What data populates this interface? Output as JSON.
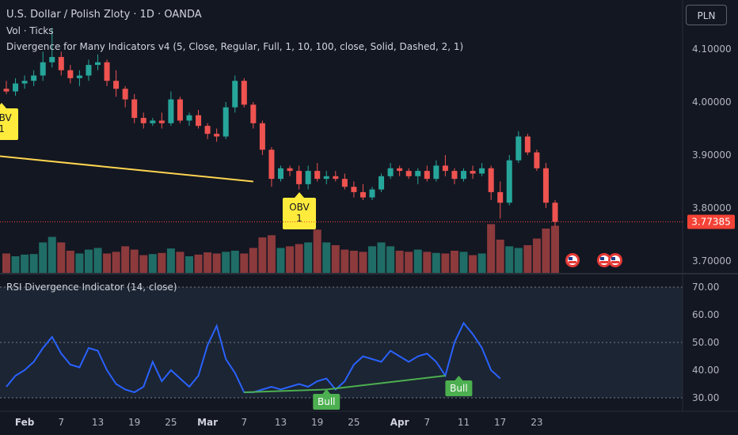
{
  "legend": {
    "symbol_line": "U.S. Dollar / Polish Zloty · 1D · OANDA",
    "volume_line": "Vol · Ticks",
    "divergence_line": "Divergence for Many Indicators v4 (5, Close, Regular, Full, 1, 10, 100, close, Solid, Dashed, 2, 1)",
    "rsi_line": "RSI Divergence Indicator (14, close)"
  },
  "currency_button": "PLN",
  "price_axis": {
    "ticks": [
      "4.10000",
      "4.00000",
      "3.90000",
      "3.80000",
      "3.70000"
    ],
    "tick_values": [
      4.1,
      4.0,
      3.9,
      3.8,
      3.7
    ],
    "last_price": "3.77385",
    "last_price_value": 3.77385
  },
  "rsi_axis": {
    "ticks": [
      "70.00",
      "60.00",
      "50.00",
      "40.00",
      "30.00"
    ],
    "tick_values": [
      70,
      60,
      50,
      40,
      30
    ]
  },
  "time_axis": {
    "labels": [
      {
        "text": "Feb",
        "bar": 2,
        "bold": true
      },
      {
        "text": "7",
        "bar": 6,
        "bold": false
      },
      {
        "text": "13",
        "bar": 10,
        "bold": false
      },
      {
        "text": "19",
        "bar": 14,
        "bold": false
      },
      {
        "text": "25",
        "bar": 18,
        "bold": false
      },
      {
        "text": "Mar",
        "bar": 22,
        "bold": true
      },
      {
        "text": "7",
        "bar": 26,
        "bold": false
      },
      {
        "text": "13",
        "bar": 30,
        "bold": false
      },
      {
        "text": "19",
        "bar": 34,
        "bold": false
      },
      {
        "text": "25",
        "bar": 38,
        "bold": false
      },
      {
        "text": "Apr",
        "bar": 43,
        "bold": true
      },
      {
        "text": "7",
        "bar": 46,
        "bold": false
      },
      {
        "text": "11",
        "bar": 50,
        "bold": false
      },
      {
        "text": "17",
        "bar": 54,
        "bold": false
      },
      {
        "text": "23",
        "bar": 58,
        "bold": false
      }
    ]
  },
  "colors": {
    "background": "#131722",
    "up": "#26a69a",
    "down": "#ef5350",
    "up_volume": "#1f6d66",
    "down_volume": "#8c3a3c",
    "rsi_line": "#2962ff",
    "rsi_band": "#1c2533",
    "divergence_line": "#ffd54f",
    "label_yellow": "#ffeb3b",
    "bull_green": "#4caf50",
    "last_price": "#f44336"
  },
  "chart_data": {
    "type": "candlestick",
    "ohlc": [
      [
        4.025,
        4.04,
        4.015,
        4.02
      ],
      [
        4.02,
        4.045,
        4.012,
        4.035
      ],
      [
        4.035,
        4.05,
        4.025,
        4.04
      ],
      [
        4.04,
        4.06,
        4.03,
        4.05
      ],
      [
        4.05,
        4.095,
        4.04,
        4.075
      ],
      [
        4.075,
        4.14,
        4.065,
        4.085
      ],
      [
        4.085,
        4.095,
        4.05,
        4.06
      ],
      [
        4.06,
        4.07,
        4.035,
        4.045
      ],
      [
        4.045,
        4.06,
        4.03,
        4.05
      ],
      [
        4.05,
        4.08,
        4.04,
        4.07
      ],
      [
        4.07,
        4.09,
        4.06,
        4.075
      ],
      [
        4.075,
        4.08,
        4.03,
        4.04
      ],
      [
        4.04,
        4.06,
        4.01,
        4.025
      ],
      [
        4.025,
        4.03,
        3.99,
        4.005
      ],
      [
        4.005,
        4.015,
        3.96,
        3.97
      ],
      [
        3.97,
        3.98,
        3.95,
        3.96
      ],
      [
        3.96,
        3.97,
        3.955,
        3.965
      ],
      [
        3.965,
        3.98,
        3.95,
        3.96
      ],
      [
        3.96,
        4.02,
        3.955,
        4.005
      ],
      [
        4.005,
        4.01,
        3.96,
        3.965
      ],
      [
        3.965,
        3.98,
        3.955,
        3.975
      ],
      [
        3.975,
        3.985,
        3.95,
        3.955
      ],
      [
        3.955,
        3.96,
        3.93,
        3.94
      ],
      [
        3.94,
        3.95,
        3.925,
        3.935
      ],
      [
        3.935,
        4.0,
        3.93,
        3.99
      ],
      [
        3.99,
        4.05,
        3.98,
        4.04
      ],
      [
        4.04,
        4.045,
        3.99,
        3.995
      ],
      [
        3.995,
        4.0,
        3.95,
        3.96
      ],
      [
        3.96,
        3.965,
        3.9,
        3.91
      ],
      [
        3.91,
        3.915,
        3.84,
        3.855
      ],
      [
        3.855,
        3.88,
        3.85,
        3.875
      ],
      [
        3.875,
        3.88,
        3.86,
        3.87
      ],
      [
        3.87,
        3.88,
        3.835,
        3.845
      ],
      [
        3.845,
        3.88,
        3.835,
        3.87
      ],
      [
        3.87,
        3.885,
        3.85,
        3.855
      ],
      [
        3.855,
        3.87,
        3.845,
        3.86
      ],
      [
        3.86,
        3.87,
        3.85,
        3.855
      ],
      [
        3.855,
        3.865,
        3.835,
        3.84
      ],
      [
        3.84,
        3.85,
        3.82,
        3.83
      ],
      [
        3.83,
        3.845,
        3.815,
        3.82
      ],
      [
        3.82,
        3.84,
        3.815,
        3.835
      ],
      [
        3.835,
        3.865,
        3.83,
        3.86
      ],
      [
        3.86,
        3.885,
        3.855,
        3.875
      ],
      [
        3.875,
        3.88,
        3.86,
        3.87
      ],
      [
        3.87,
        3.875,
        3.855,
        3.86
      ],
      [
        3.86,
        3.875,
        3.845,
        3.87
      ],
      [
        3.87,
        3.88,
        3.85,
        3.855
      ],
      [
        3.855,
        3.89,
        3.85,
        3.88
      ],
      [
        3.88,
        3.9,
        3.86,
        3.87
      ],
      [
        3.87,
        3.875,
        3.845,
        3.855
      ],
      [
        3.855,
        3.875,
        3.85,
        3.87
      ],
      [
        3.87,
        3.88,
        3.855,
        3.865
      ],
      [
        3.865,
        3.885,
        3.86,
        3.875
      ],
      [
        3.875,
        3.88,
        3.815,
        3.83
      ],
      [
        3.83,
        3.85,
        3.78,
        3.81
      ],
      [
        3.81,
        3.9,
        3.805,
        3.89
      ],
      [
        3.89,
        3.945,
        3.885,
        3.935
      ],
      [
        3.935,
        3.94,
        3.9,
        3.905
      ],
      [
        3.905,
        3.91,
        3.87,
        3.875
      ],
      [
        3.875,
        3.885,
        3.8,
        3.81
      ],
      [
        3.81,
        3.815,
        3.765,
        3.774
      ]
    ],
    "volume": [
      0.35,
      0.3,
      0.33,
      0.34,
      0.55,
      0.65,
      0.55,
      0.4,
      0.35,
      0.42,
      0.45,
      0.35,
      0.38,
      0.48,
      0.42,
      0.32,
      0.34,
      0.36,
      0.44,
      0.38,
      0.3,
      0.33,
      0.37,
      0.35,
      0.38,
      0.4,
      0.35,
      0.45,
      0.64,
      0.68,
      0.45,
      0.48,
      0.52,
      0.55,
      0.78,
      0.55,
      0.5,
      0.42,
      0.4,
      0.38,
      0.48,
      0.55,
      0.48,
      0.4,
      0.38,
      0.42,
      0.38,
      0.36,
      0.35,
      0.4,
      0.38,
      0.32,
      0.35,
      0.88,
      0.6,
      0.48,
      0.45,
      0.5,
      0.62,
      0.8,
      0.85
    ],
    "rsi": [
      [
        0,
        34
      ],
      [
        1,
        38
      ],
      [
        2,
        40
      ],
      [
        3,
        43
      ],
      [
        4,
        48
      ],
      [
        5,
        52
      ],
      [
        6,
        46
      ],
      [
        7,
        42
      ],
      [
        8,
        41
      ],
      [
        9,
        48
      ],
      [
        10,
        47
      ],
      [
        11,
        40
      ],
      [
        12,
        35
      ],
      [
        13,
        33
      ],
      [
        14,
        32
      ],
      [
        15,
        34
      ],
      [
        16,
        43
      ],
      [
        17,
        36
      ],
      [
        18,
        40
      ],
      [
        19,
        37
      ],
      [
        20,
        34
      ],
      [
        21,
        38
      ],
      [
        22,
        49
      ],
      [
        23,
        56
      ],
      [
        24,
        44
      ],
      [
        25,
        39
      ],
      [
        26,
        32
      ],
      [
        27,
        32
      ],
      [
        28,
        33
      ],
      [
        29,
        34
      ],
      [
        30,
        33
      ],
      [
        31,
        34
      ],
      [
        32,
        35
      ],
      [
        33,
        34
      ],
      [
        34,
        36
      ],
      [
        35,
        37
      ],
      [
        36,
        33
      ],
      [
        37,
        36
      ],
      [
        38,
        42
      ],
      [
        39,
        45
      ],
      [
        40,
        44
      ],
      [
        41,
        43
      ],
      [
        42,
        47
      ],
      [
        43,
        45
      ],
      [
        44,
        43
      ],
      [
        45,
        45
      ],
      [
        46,
        46
      ],
      [
        47,
        43
      ],
      [
        48,
        38
      ],
      [
        49,
        50
      ],
      [
        50,
        57
      ],
      [
        51,
        53
      ],
      [
        52,
        48
      ],
      [
        53,
        40
      ],
      [
        54,
        37
      ]
    ],
    "divergence_price": {
      "from_bar": -2,
      "to_bar": 27,
      "from_value": 3.9,
      "to_value": 3.85,
      "label": "OBV\n1"
    },
    "divergence_price_left_label": "OBV\n1",
    "divergence_rsi": [
      {
        "from": [
          26,
          32
        ],
        "to": [
          35,
          33
        ],
        "label": "Bull"
      },
      {
        "from": [
          35,
          33
        ],
        "to": [
          48,
          38
        ],
        "label": "Bull"
      }
    ],
    "ylim_price": [
      3.68,
      4.15
    ],
    "ylim_rsi": [
      28,
      72
    ]
  }
}
